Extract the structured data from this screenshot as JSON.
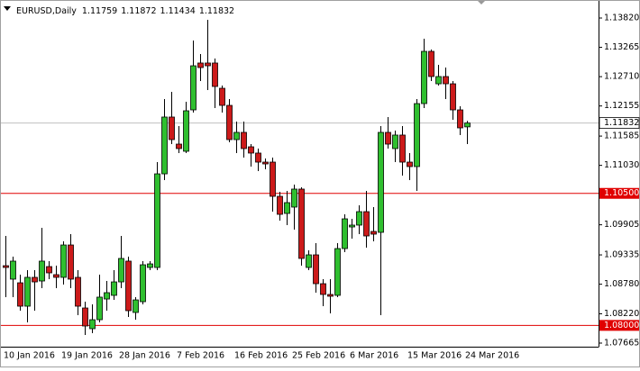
{
  "chart_data": {
    "type": "candlestick",
    "title": "EURUSD,Daily",
    "categories": [
      "10 Jan 2016",
      null,
      null,
      null,
      null,
      null,
      null,
      null,
      "19 Jan 2016",
      null,
      null,
      null,
      null,
      null,
      null,
      null,
      "28 Jan 2016",
      null,
      null,
      null,
      null,
      null,
      null,
      null,
      "7 Feb 2016",
      null,
      null,
      null,
      null,
      null,
      null,
      null,
      "16 Feb 2016",
      null,
      null,
      null,
      null,
      null,
      null,
      null,
      "25 Feb 2016",
      null,
      null,
      null,
      null,
      null,
      null,
      null,
      "6 Mar 2016",
      null,
      null,
      null,
      null,
      null,
      null,
      null,
      "15 Mar 2016",
      null,
      null,
      null,
      null,
      null,
      null,
      null,
      "24 Mar 2016"
    ],
    "open": [
      1.09131,
      1.08876,
      1.08807,
      1.08364,
      1.0891,
      1.08841,
      1.09114,
      1.08961,
      1.0891,
      1.09523,
      1.0891,
      1.0833,
      1.07938,
      1.08108,
      1.085,
      1.08569,
      1.08824,
      1.09217,
      1.08245,
      1.08449,
      1.09097,
      1.09097,
      1.1087,
      1.11945,
      1.11433,
      1.11297,
      1.12081,
      1.12968,
      1.12968,
      1.12968,
      1.1249,
      1.12166,
      1.11518,
      1.11655,
      1.11382,
      1.11263,
      1.11092,
      1.11092,
      1.10444,
      1.1012,
      1.1024,
      1.10581,
      1.09097,
      1.09336,
      1.0879,
      1.08586,
      1.08569,
      1.09455,
      1.09864,
      1.09899,
      1.10154,
      1.09779,
      1.09762,
      1.11655,
      1.11348,
      1.11604,
      1.11092,
      1.11007,
      1.122,
      1.13189,
      1.12575,
      1.12712,
      1.12575,
      1.12081,
      1.11759
    ],
    "high": [
      1.09694,
      1.09302,
      1.08961,
      1.09046,
      1.09046,
      1.09847,
      1.09217,
      1.09131,
      1.09592,
      1.09728,
      1.09046,
      1.08449,
      1.08398,
      1.08961,
      1.08841,
      1.09046,
      1.09694,
      1.09302,
      1.08535,
      1.09217,
      1.09217,
      1.11092,
      1.12286,
      1.12422,
      1.11774,
      1.12234,
      1.13394,
      1.13138,
      1.13786,
      1.13053,
      1.12541,
      1.12286,
      1.11859,
      1.11859,
      1.11433,
      1.11348,
      1.1116,
      1.11178,
      1.10529,
      1.10546,
      1.10666,
      1.10615,
      1.09421,
      1.09558,
      1.08876,
      1.08876,
      1.09558,
      1.10103,
      1.10018,
      1.10274,
      1.10546,
      1.1024,
      1.11774,
      1.11945,
      1.11689,
      1.11774,
      1.11263,
      1.12286,
      1.13428,
      1.13223,
      1.12933,
      1.12882,
      1.12627,
      1.12149,
      1.11872
    ],
    "low": [
      1.08535,
      1.08535,
      1.08279,
      1.08057,
      1.08279,
      1.08705,
      1.08876,
      1.08705,
      1.08773,
      1.08705,
      1.08194,
      1.07819,
      1.07853,
      1.08057,
      1.08279,
      1.08483,
      1.08705,
      1.0816,
      1.08108,
      1.08398,
      1.09046,
      1.09046,
      1.10751,
      1.11433,
      1.11263,
      1.11263,
      1.1203,
      1.12627,
      1.12456,
      1.12115,
      1.1203,
      1.11467,
      1.11263,
      1.11178,
      1.11007,
      1.10922,
      1.10956,
      1.10154,
      1.09984,
      1.09899,
      1.09813,
      1.09131,
      1.09046,
      1.0862,
      1.08364,
      1.08228,
      1.08535,
      1.09387,
      1.09643,
      1.09728,
      1.09472,
      1.09592,
      1.08194,
      1.11348,
      1.11092,
      1.10836,
      1.10751,
      1.10546,
      1.12115,
      1.12627,
      1.12541,
      1.12286,
      1.11893,
      1.11604,
      1.11434
    ],
    "close": [
      1.09097,
      1.09217,
      1.08364,
      1.0891,
      1.08824,
      1.09217,
      1.08995,
      1.0891,
      1.09523,
      1.08876,
      1.08364,
      1.07989,
      1.08108,
      1.08535,
      1.0862,
      1.08824,
      1.09268,
      1.08279,
      1.08483,
      1.09148,
      1.09165,
      1.1087,
      1.11945,
      1.11518,
      1.11348,
      1.12064,
      1.12916,
      1.12882,
      1.12916,
      1.12524,
      1.12166,
      1.11518,
      1.11655,
      1.11348,
      1.11263,
      1.11092,
      1.11058,
      1.10444,
      1.10103,
      1.10325,
      1.10581,
      1.09268,
      1.09336,
      1.0879,
      1.08586,
      1.08552,
      1.09455,
      1.10018,
      1.09899,
      1.10154,
      1.09694,
      1.09728,
      1.11655,
      1.11433,
      1.11604,
      1.11092,
      1.11007,
      1.122,
      1.13189,
      1.12712,
      1.12712,
      1.12575,
      1.12081,
      1.1174,
      1.11832
    ],
    "up_color": "#2fbf2f",
    "down_color": "#cc1a1a",
    "ylim": [
      1.07597,
      1.14076
    ],
    "yticks": [
      {
        "value": 1.1382,
        "label": "1.13820"
      },
      1.13265,
      {
        "value": 1.1271,
        "label": "1.12710"
      },
      1.12155,
      1.11585,
      {
        "value": 1.1103,
        "label": "1.11030"
      },
      1.09905,
      1.09335,
      {
        "value": 1.0878,
        "label": "1.08780"
      },
      {
        "value": 1.0822,
        "label": "1.08220"
      },
      1.07665
    ],
    "hlines": [
      {
        "value": 1.105,
        "label": "1.10500",
        "color": "#e00000"
      },
      {
        "value": 1.08,
        "label": "1.08000",
        "color": "#e00000"
      }
    ],
    "price_line_color": "#c0c0c0",
    "grid": false
  }
}
